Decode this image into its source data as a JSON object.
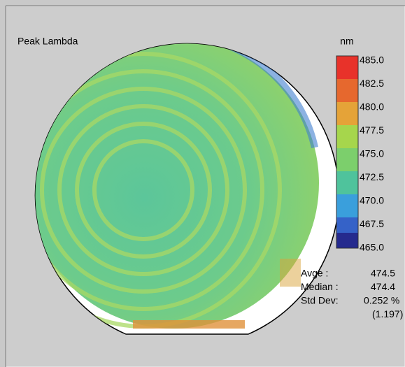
{
  "title": "Peak Lambda",
  "colorbar": {
    "unit": "nm",
    "ticks": [
      "485.0",
      "482.5",
      "480.0",
      "477.5",
      "475.0",
      "472.5",
      "470.0",
      "467.5",
      "465.0"
    ]
  },
  "stats": [
    {
      "label": "Avge  :",
      "value": "474.5"
    },
    {
      "label": "Median :",
      "value": "474.4"
    },
    {
      "label": "Std Dev:",
      "value": "0.252 %"
    },
    {
      "label": "",
      "value": "(1.197)"
    }
  ]
}
